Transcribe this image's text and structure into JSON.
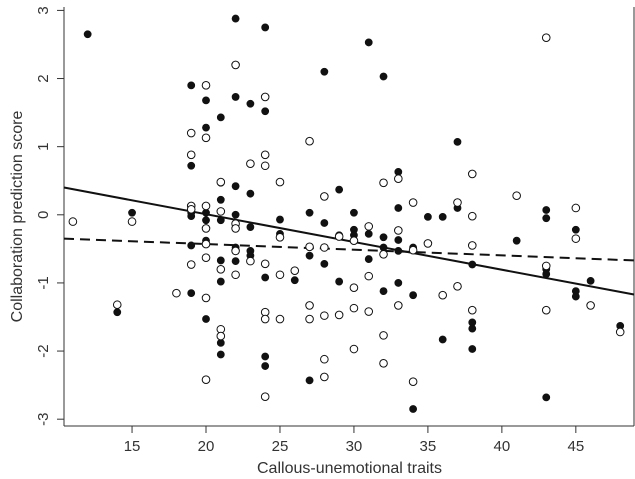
{
  "chart_data": {
    "type": "scatter",
    "title": "",
    "xlabel": "Callous-unemotional traits",
    "ylabel": "Collaboration prediction score",
    "xlim": [
      10.4,
      49.0
    ],
    "ylim": [
      -3.1,
      3.05
    ],
    "xticks": [
      15,
      20,
      25,
      30,
      35,
      40,
      45
    ],
    "yticks": [
      -3,
      -2,
      -1,
      0,
      1,
      2,
      3
    ],
    "grid": false,
    "legend": "none",
    "colors": {
      "axis": "#333333",
      "filled": "#111111",
      "open_stroke": "#111111",
      "open_fill": "#ffffff"
    },
    "series": [
      {
        "marker": "filled-circle",
        "points": [
          [
            12,
            2.65
          ],
          [
            14,
            -1.43
          ],
          [
            15,
            0.03
          ],
          [
            19,
            1.9
          ],
          [
            19,
            0.72
          ],
          [
            19,
            0.03
          ],
          [
            19,
            -0.02
          ],
          [
            19,
            -0.45
          ],
          [
            19,
            -1.15
          ],
          [
            20,
            1.68
          ],
          [
            20,
            1.28
          ],
          [
            20,
            0.03
          ],
          [
            20,
            -0.08
          ],
          [
            20,
            -0.38
          ],
          [
            20,
            -1.53
          ],
          [
            21,
            1.43
          ],
          [
            21,
            0.47
          ],
          [
            21,
            0.22
          ],
          [
            21,
            -0.08
          ],
          [
            21,
            -0.67
          ],
          [
            21,
            -0.98
          ],
          [
            21,
            -1.88
          ],
          [
            21,
            -2.05
          ],
          [
            22,
            2.88
          ],
          [
            22,
            1.73
          ],
          [
            22,
            0.42
          ],
          [
            22,
            0.0
          ],
          [
            22,
            -0.48
          ],
          [
            22,
            -0.68
          ],
          [
            23,
            1.63
          ],
          [
            23,
            0.31
          ],
          [
            23,
            -0.18
          ],
          [
            23,
            -0.53
          ],
          [
            23,
            -0.6
          ],
          [
            24,
            2.75
          ],
          [
            24,
            1.52
          ],
          [
            24,
            -0.92
          ],
          [
            24,
            -2.08
          ],
          [
            24,
            -2.22
          ],
          [
            25,
            -0.07
          ],
          [
            25,
            -0.28
          ],
          [
            26,
            -0.96
          ],
          [
            27,
            0.03
          ],
          [
            27,
            -0.6
          ],
          [
            27,
            -2.43
          ],
          [
            28,
            2.1
          ],
          [
            28,
            -0.12
          ],
          [
            28,
            -0.72
          ],
          [
            29,
            0.37
          ],
          [
            29,
            -0.3
          ],
          [
            29,
            -0.98
          ],
          [
            30,
            0.03
          ],
          [
            30,
            -0.22
          ],
          [
            30,
            -0.3
          ],
          [
            31,
            2.53
          ],
          [
            31,
            -0.28
          ],
          [
            31,
            -0.65
          ],
          [
            32,
            2.03
          ],
          [
            32,
            -0.33
          ],
          [
            32,
            -0.48
          ],
          [
            32,
            -1.12
          ],
          [
            33,
            0.63
          ],
          [
            33,
            0.1
          ],
          [
            33,
            -0.37
          ],
          [
            33,
            -0.53
          ],
          [
            33,
            -1.0
          ],
          [
            34,
            -0.48
          ],
          [
            34,
            -1.18
          ],
          [
            34,
            -2.85
          ],
          [
            35,
            -0.03
          ],
          [
            36,
            -1.83
          ],
          [
            36,
            -0.03
          ],
          [
            37,
            1.07
          ],
          [
            37,
            0.1
          ],
          [
            38,
            -0.73
          ],
          [
            38,
            -1.58
          ],
          [
            38,
            -1.67
          ],
          [
            38,
            -1.97
          ],
          [
            41,
            -0.38
          ],
          [
            43,
            0.07
          ],
          [
            43,
            -0.05
          ],
          [
            43,
            -0.8
          ],
          [
            43,
            -0.87
          ],
          [
            43,
            -2.68
          ],
          [
            45,
            -0.22
          ],
          [
            45,
            -1.12
          ],
          [
            45,
            -1.2
          ],
          [
            46,
            -0.97
          ],
          [
            48,
            -1.63
          ]
        ]
      },
      {
        "marker": "open-circle",
        "points": [
          [
            11,
            -0.1
          ],
          [
            14,
            -1.32
          ],
          [
            15,
            -0.1
          ],
          [
            18,
            -1.15
          ],
          [
            19,
            1.2
          ],
          [
            19,
            0.88
          ],
          [
            19,
            0.13
          ],
          [
            19,
            0.08
          ],
          [
            19,
            -0.73
          ],
          [
            20,
            1.9
          ],
          [
            20,
            1.13
          ],
          [
            20,
            0.13
          ],
          [
            20,
            -0.2
          ],
          [
            20,
            -0.43
          ],
          [
            20,
            -0.63
          ],
          [
            20,
            -1.22
          ],
          [
            20,
            -2.42
          ],
          [
            21,
            0.48
          ],
          [
            21,
            0.05
          ],
          [
            21,
            -0.8
          ],
          [
            21,
            -1.68
          ],
          [
            21,
            -1.78
          ],
          [
            22,
            2.2
          ],
          [
            22,
            -0.13
          ],
          [
            22,
            -0.2
          ],
          [
            22,
            -0.53
          ],
          [
            22,
            -0.88
          ],
          [
            23,
            0.75
          ],
          [
            23,
            -0.68
          ],
          [
            24,
            1.73
          ],
          [
            24,
            0.88
          ],
          [
            24,
            0.72
          ],
          [
            24,
            -0.72
          ],
          [
            24,
            -1.43
          ],
          [
            24,
            -1.53
          ],
          [
            24,
            -2.67
          ],
          [
            25,
            0.48
          ],
          [
            25,
            -0.33
          ],
          [
            25,
            -0.88
          ],
          [
            25,
            -1.53
          ],
          [
            26,
            -0.82
          ],
          [
            27,
            1.08
          ],
          [
            27,
            -0.47
          ],
          [
            27,
            -1.33
          ],
          [
            27,
            -1.53
          ],
          [
            28,
            0.27
          ],
          [
            28,
            -0.48
          ],
          [
            28,
            -1.48
          ],
          [
            28,
            -2.12
          ],
          [
            28,
            -2.38
          ],
          [
            29,
            -0.32
          ],
          [
            29,
            -1.47
          ],
          [
            30,
            -0.38
          ],
          [
            30,
            -1.07
          ],
          [
            30,
            -1.37
          ],
          [
            30,
            -1.97
          ],
          [
            31,
            -0.17
          ],
          [
            31,
            -0.9
          ],
          [
            31,
            -1.42
          ],
          [
            32,
            0.47
          ],
          [
            32,
            -0.58
          ],
          [
            32,
            -1.77
          ],
          [
            32,
            -2.18
          ],
          [
            33,
            0.53
          ],
          [
            33,
            -0.23
          ],
          [
            33,
            -1.33
          ],
          [
            34,
            0.18
          ],
          [
            34,
            -0.52
          ],
          [
            34,
            -2.45
          ],
          [
            35,
            -0.42
          ],
          [
            36,
            -1.18
          ],
          [
            37,
            0.18
          ],
          [
            37,
            -1.05
          ],
          [
            38,
            0.6
          ],
          [
            38,
            -0.02
          ],
          [
            38,
            -0.45
          ],
          [
            38,
            -1.4
          ],
          [
            41,
            0.28
          ],
          [
            43,
            2.6
          ],
          [
            43,
            -0.75
          ],
          [
            43,
            -1.4
          ],
          [
            45,
            0.1
          ],
          [
            45,
            -0.35
          ],
          [
            46,
            -1.33
          ],
          [
            48,
            -1.72
          ]
        ]
      }
    ],
    "fit_lines": [
      {
        "style": "solid",
        "x": [
          10.4,
          49.0
        ],
        "y": [
          0.4,
          -1.17
        ]
      },
      {
        "style": "dashed",
        "x": [
          10.4,
          49.0
        ],
        "y": [
          -0.35,
          -0.67
        ]
      }
    ]
  }
}
